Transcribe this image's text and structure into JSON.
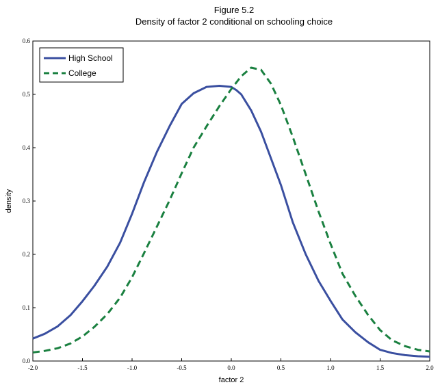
{
  "figure": {
    "title": "Figure 5.2",
    "subtitle": "Density of factor 2 conditional on schooling choice"
  },
  "chart_data": {
    "type": "line",
    "title": "Figure 5.2",
    "subtitle": "Density of factor 2 conditional on schooling choice",
    "xlabel": "factor 2",
    "ylabel": "density",
    "xlim": [
      -2.0,
      2.0
    ],
    "ylim": [
      0.0,
      0.6
    ],
    "xticks": [
      "-2.0",
      "-1.5",
      "-1.0",
      "-0.5",
      "0.0",
      "0.5",
      "1.0",
      "1.5",
      "2.0"
    ],
    "yticks": [
      "0.0",
      "0.1",
      "0.2",
      "0.3",
      "0.4",
      "0.5",
      "0.6"
    ],
    "grid": false,
    "legend": "top-left",
    "series": [
      {
        "name": "High School",
        "color": "#3a4fa0",
        "style": "solid",
        "x": [
          -2.0,
          -1.88,
          -1.75,
          -1.62,
          -1.5,
          -1.38,
          -1.25,
          -1.12,
          -1.0,
          -0.88,
          -0.75,
          -0.62,
          -0.5,
          -0.38,
          -0.25,
          -0.12,
          0.0,
          0.05,
          0.1,
          0.2,
          0.3,
          0.4,
          0.5,
          0.62,
          0.75,
          0.88,
          1.0,
          1.12,
          1.25,
          1.38,
          1.5,
          1.62,
          1.75,
          1.88,
          2.0
        ],
        "y": [
          0.042,
          0.051,
          0.065,
          0.086,
          0.112,
          0.141,
          0.177,
          0.222,
          0.276,
          0.335,
          0.392,
          0.441,
          0.482,
          0.502,
          0.514,
          0.516,
          0.514,
          0.508,
          0.5,
          0.47,
          0.43,
          0.38,
          0.33,
          0.26,
          0.2,
          0.15,
          0.113,
          0.078,
          0.054,
          0.035,
          0.021,
          0.015,
          0.011,
          0.009,
          0.008
        ]
      },
      {
        "name": "College",
        "color": "#1a8040",
        "style": "dashed",
        "x": [
          -2.0,
          -1.88,
          -1.75,
          -1.62,
          -1.5,
          -1.38,
          -1.25,
          -1.12,
          -1.0,
          -0.88,
          -0.75,
          -0.62,
          -0.5,
          -0.38,
          -0.25,
          -0.12,
          0.0,
          0.1,
          0.2,
          0.3,
          0.4,
          0.5,
          0.62,
          0.75,
          0.88,
          1.0,
          1.12,
          1.25,
          1.38,
          1.5,
          1.62,
          1.75,
          1.88,
          2.0
        ],
        "y": [
          0.016,
          0.019,
          0.024,
          0.033,
          0.046,
          0.064,
          0.088,
          0.119,
          0.157,
          0.202,
          0.252,
          0.302,
          0.352,
          0.4,
          0.44,
          0.478,
          0.51,
          0.534,
          0.55,
          0.546,
          0.52,
          0.48,
          0.42,
          0.35,
          0.28,
          0.22,
          0.164,
          0.122,
          0.086,
          0.058,
          0.039,
          0.028,
          0.021,
          0.018
        ]
      }
    ]
  }
}
